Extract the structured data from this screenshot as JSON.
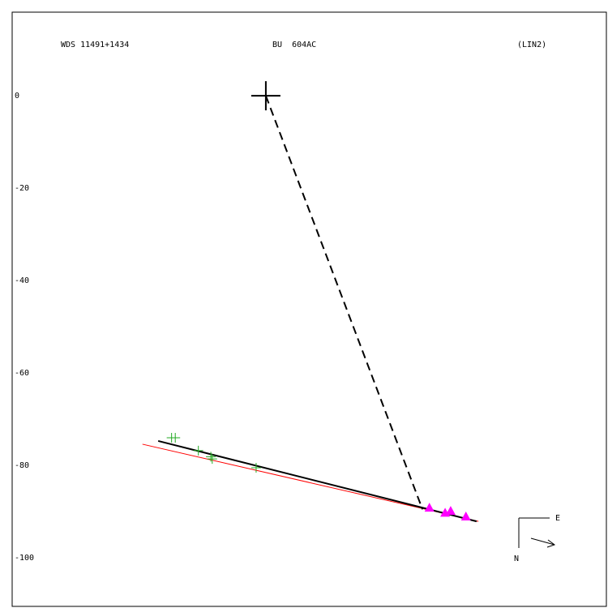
{
  "chart_data": {
    "type": "scatter",
    "title": "WDS 11491+1434",
    "subtitle": "BU  604AC",
    "annotation": "(LIN2)",
    "xlim": [
      -54.9,
      73.7
    ],
    "ylim": [
      -110.5,
      18.1
    ],
    "yticks": [
      0,
      -20,
      -40,
      -60,
      -80,
      -100
    ],
    "series": [
      {
        "color": "#22aa22",
        "marker": "plus",
        "x": [
          -20.4,
          -19.6,
          -14.6,
          -11.9,
          -11.6,
          -2.1
        ],
        "y": [
          -74.0,
          -74.0,
          -76.8,
          -78.1,
          -78.6,
          -80.5
        ]
      },
      {
        "color": "#ff00ff",
        "marker": "triangle",
        "x": [
          35.4,
          38.8,
          40.0,
          43.3
        ],
        "y": [
          -89.3,
          -90.4,
          -90.0,
          -91.2
        ]
      }
    ],
    "lines": [
      {
        "color": "#ff0000",
        "dashed": false,
        "x": [
          -26.7,
          46.0
        ],
        "y": [
          -75.4,
          -92.1
        ]
      },
      {
        "color": "#000000",
        "dashed": false,
        "x": [
          -23.3,
          45.6
        ],
        "y": [
          -74.7,
          -92.1
        ]
      },
      {
        "color": "#000000",
        "dashed": true,
        "x": [
          0,
          33.9
        ],
        "y": [
          0,
          -89.5
        ]
      }
    ],
    "primary": {
      "x": 0,
      "y": 0
    }
  },
  "compass": {
    "east": "E",
    "north": "N"
  }
}
